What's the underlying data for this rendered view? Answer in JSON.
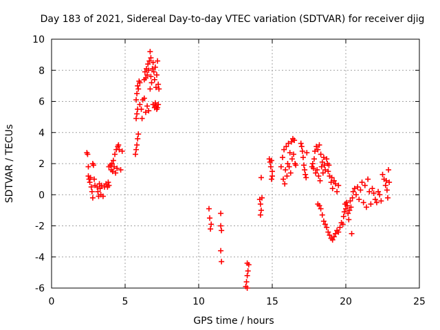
{
  "chart_data": {
    "type": "scatter",
    "title": "Day 183 of 2021, Sidereal Day-to-day VTEC variation (SDTVAR) for receiver djig",
    "xlabel": "GPS time / hours",
    "ylabel": "SDTVAR / TECUs",
    "xlim": [
      0,
      25
    ],
    "ylim": [
      -6,
      10
    ],
    "xticks": [
      "0",
      "5",
      "10",
      "15",
      "20",
      "25"
    ],
    "yticks": [
      "-6",
      "-4",
      "-2",
      "0",
      "2",
      "4",
      "6",
      "8",
      "10"
    ],
    "xtick_values": [
      0,
      5,
      10,
      15,
      20,
      25
    ],
    "ytick_values": [
      -6,
      -4,
      -2,
      0,
      2,
      4,
      6,
      8,
      10
    ],
    "grid": true,
    "marker": "+",
    "color": "#ff0000",
    "series": [
      {
        "points": [
          [
            2.4,
            2.7
          ],
          [
            2.45,
            2.6
          ],
          [
            2.5,
            1.8
          ],
          [
            2.5,
            1.2
          ],
          [
            2.55,
            1.0
          ],
          [
            2.6,
            0.8
          ],
          [
            2.65,
            1.1
          ],
          [
            2.7,
            0.5
          ],
          [
            2.75,
            0.2
          ],
          [
            2.8,
            -0.2
          ],
          [
            2.8,
            2.0
          ],
          [
            2.85,
            1.9
          ],
          [
            2.9,
            1.0
          ],
          [
            2.95,
            0.6
          ],
          [
            3.1,
            0.5
          ],
          [
            3.15,
            0.2
          ],
          [
            3.2,
            -0.1
          ],
          [
            3.25,
            0.7
          ],
          [
            3.3,
            0.4
          ],
          [
            3.35,
            0.0
          ],
          [
            3.4,
            0.6
          ],
          [
            3.5,
            -0.1
          ],
          [
            3.6,
            0.5
          ],
          [
            3.7,
            0.7
          ],
          [
            3.8,
            0.5
          ],
          [
            3.85,
            0.8
          ],
          [
            3.9,
            0.6
          ],
          [
            3.9,
            1.8
          ],
          [
            4.0,
            1.9
          ],
          [
            4.05,
            1.6
          ],
          [
            4.1,
            2.0
          ],
          [
            4.15,
            1.5
          ],
          [
            4.2,
            2.2
          ],
          [
            4.25,
            1.8
          ],
          [
            4.3,
            2.6
          ],
          [
            4.35,
            1.4
          ],
          [
            4.4,
            2.9
          ],
          [
            4.45,
            1.7
          ],
          [
            4.5,
            3.1
          ],
          [
            4.55,
            3.2
          ],
          [
            4.6,
            2.9
          ],
          [
            4.7,
            1.6
          ],
          [
            4.8,
            2.8
          ],
          [
            5.7,
            2.6
          ],
          [
            5.75,
            2.9
          ],
          [
            5.8,
            3.2
          ],
          [
            5.85,
            3.6
          ],
          [
            5.9,
            3.9
          ],
          [
            5.75,
            4.9
          ],
          [
            5.8,
            5.2
          ],
          [
            5.85,
            5.5
          ],
          [
            5.75,
            6.1
          ],
          [
            5.8,
            6.5
          ],
          [
            5.85,
            7.0
          ],
          [
            5.9,
            6.8
          ],
          [
            5.95,
            7.3
          ],
          [
            6.0,
            7.2
          ],
          [
            6.0,
            5.8
          ],
          [
            6.1,
            5.5
          ],
          [
            6.15,
            4.9
          ],
          [
            6.2,
            6.1
          ],
          [
            6.3,
            6.2
          ],
          [
            6.3,
            7.4
          ],
          [
            6.35,
            7.9
          ],
          [
            6.4,
            7.5
          ],
          [
            6.45,
            8.1
          ],
          [
            6.5,
            7.7
          ],
          [
            6.55,
            8.4
          ],
          [
            6.6,
            8.0
          ],
          [
            6.65,
            8.6
          ],
          [
            6.7,
            9.2
          ],
          [
            6.75,
            8.8
          ],
          [
            6.4,
            5.3
          ],
          [
            6.5,
            5.7
          ],
          [
            6.6,
            5.4
          ],
          [
            6.7,
            6.8
          ],
          [
            6.75,
            7.6
          ],
          [
            6.8,
            7.2
          ],
          [
            6.85,
            8.1
          ],
          [
            6.9,
            8.5
          ],
          [
            6.95,
            7.9
          ],
          [
            7.0,
            7.4
          ],
          [
            7.05,
            8.2
          ],
          [
            7.1,
            6.9
          ],
          [
            7.15,
            7.7
          ],
          [
            7.2,
            8.6
          ],
          [
            7.25,
            7.1
          ],
          [
            7.3,
            6.8
          ],
          [
            6.9,
            5.8
          ],
          [
            7.0,
            5.6
          ],
          [
            7.05,
            5.9
          ],
          [
            7.1,
            5.7
          ],
          [
            7.15,
            5.5
          ],
          [
            7.2,
            5.6
          ],
          [
            7.25,
            5.8
          ],
          [
            10.7,
            -0.9
          ],
          [
            10.75,
            -1.5
          ],
          [
            10.8,
            -2.2
          ],
          [
            10.85,
            -1.9
          ],
          [
            11.5,
            -1.2
          ],
          [
            11.5,
            -2.0
          ],
          [
            11.55,
            -2.3
          ],
          [
            11.5,
            -3.6
          ],
          [
            11.55,
            -4.3
          ],
          [
            13.2,
            -5.9
          ],
          [
            13.25,
            -5.6
          ],
          [
            13.3,
            -5.2
          ],
          [
            13.35,
            -4.9
          ],
          [
            13.3,
            -4.4
          ],
          [
            13.4,
            -4.5
          ],
          [
            13.3,
            -6.0
          ],
          [
            14.15,
            -0.3
          ],
          [
            14.2,
            -0.6
          ],
          [
            14.25,
            -1.0
          ],
          [
            14.2,
            -1.3
          ],
          [
            14.25,
            1.1
          ],
          [
            14.3,
            -0.2
          ],
          [
            14.8,
            2.3
          ],
          [
            14.85,
            2.1
          ],
          [
            14.9,
            1.8
          ],
          [
            14.95,
            2.2
          ],
          [
            15.0,
            1.5
          ],
          [
            14.95,
            1.0
          ],
          [
            15.0,
            1.2
          ],
          [
            15.6,
            1.8
          ],
          [
            15.7,
            2.4
          ],
          [
            15.75,
            1.0
          ],
          [
            15.8,
            2.9
          ],
          [
            15.85,
            0.7
          ],
          [
            15.9,
            1.6
          ],
          [
            15.95,
            3.1
          ],
          [
            16.0,
            1.2
          ],
          [
            16.05,
            2.0
          ],
          [
            16.1,
            3.3
          ],
          [
            16.15,
            1.8
          ],
          [
            16.2,
            2.7
          ],
          [
            16.25,
            1.4
          ],
          [
            16.3,
            3.4
          ],
          [
            16.35,
            2.3
          ],
          [
            16.4,
            3.6
          ],
          [
            16.45,
            2.6
          ],
          [
            16.5,
            3.5
          ],
          [
            16.55,
            2.0
          ],
          [
            16.6,
            1.9
          ],
          [
            16.95,
            3.3
          ],
          [
            17.0,
            3.1
          ],
          [
            17.05,
            2.8
          ],
          [
            17.1,
            2.4
          ],
          [
            17.15,
            1.9
          ],
          [
            17.2,
            1.6
          ],
          [
            17.25,
            1.3
          ],
          [
            17.3,
            1.1
          ],
          [
            17.35,
            2.7
          ],
          [
            17.7,
            1.8
          ],
          [
            17.75,
            2.0
          ],
          [
            17.8,
            1.7
          ],
          [
            17.85,
            2.3
          ],
          [
            17.9,
            2.8
          ],
          [
            17.95,
            1.4
          ],
          [
            18.0,
            3.1
          ],
          [
            18.05,
            1.6
          ],
          [
            18.1,
            2.9
          ],
          [
            18.15,
            1.2
          ],
          [
            18.2,
            3.2
          ],
          [
            18.25,
            0.9
          ],
          [
            18.3,
            2.6
          ],
          [
            18.35,
            1.8
          ],
          [
            18.4,
            2.1
          ],
          [
            18.45,
            1.4
          ],
          [
            18.5,
            2.4
          ],
          [
            18.55,
            1.9
          ],
          [
            18.6,
            1.6
          ],
          [
            18.7,
            2.3
          ],
          [
            18.75,
            2.0
          ],
          [
            18.8,
            1.5
          ],
          [
            18.85,
            1.9
          ],
          [
            18.9,
            1.2
          ],
          [
            19.0,
            0.8
          ],
          [
            19.05,
            1.1
          ],
          [
            19.1,
            0.4
          ],
          [
            19.2,
            0.9
          ],
          [
            19.3,
            0.7
          ],
          [
            19.4,
            0.2
          ],
          [
            19.5,
            0.6
          ],
          [
            18.1,
            -0.6
          ],
          [
            18.2,
            -0.7
          ],
          [
            18.3,
            -0.9
          ],
          [
            18.4,
            -1.3
          ],
          [
            18.5,
            -1.7
          ],
          [
            18.6,
            -1.9
          ],
          [
            18.7,
            -2.1
          ],
          [
            18.8,
            -2.4
          ],
          [
            18.9,
            -2.6
          ],
          [
            19.0,
            -2.8
          ],
          [
            19.1,
            -2.9
          ],
          [
            19.2,
            -2.7
          ],
          [
            19.3,
            -2.5
          ],
          [
            19.4,
            -2.3
          ],
          [
            19.5,
            -2.4
          ],
          [
            19.6,
            -2.1
          ],
          [
            19.7,
            -1.8
          ],
          [
            19.8,
            -1.9
          ],
          [
            19.85,
            -1.4
          ],
          [
            19.9,
            -1.1
          ],
          [
            19.95,
            -0.6
          ],
          [
            20.0,
            -0.9
          ],
          [
            20.05,
            -0.5
          ],
          [
            20.1,
            -0.7
          ],
          [
            20.15,
            -1.2
          ],
          [
            20.2,
            -1.6
          ],
          [
            20.25,
            -1.0
          ],
          [
            20.3,
            -0.4
          ],
          [
            20.35,
            -0.8
          ],
          [
            20.4,
            -2.5
          ],
          [
            20.45,
            -0.2
          ],
          [
            20.5,
            0.2
          ],
          [
            20.6,
            0.4
          ],
          [
            20.7,
            0.0
          ],
          [
            20.8,
            0.5
          ],
          [
            20.9,
            -0.3
          ],
          [
            21.0,
            0.3
          ],
          [
            21.1,
            0.8
          ],
          [
            21.2,
            -0.5
          ],
          [
            21.3,
            0.6
          ],
          [
            21.4,
            -0.8
          ],
          [
            21.5,
            1.0
          ],
          [
            21.6,
            0.2
          ],
          [
            21.7,
            -0.6
          ],
          [
            21.8,
            0.4
          ],
          [
            21.9,
            0.1
          ],
          [
            22.0,
            -0.3
          ],
          [
            22.1,
            -0.5
          ],
          [
            22.2,
            0.2
          ],
          [
            22.3,
            0.0
          ],
          [
            22.4,
            -0.4
          ],
          [
            22.5,
            1.3
          ],
          [
            22.6,
            1.0
          ],
          [
            22.7,
            0.6
          ],
          [
            22.75,
            0.9
          ],
          [
            22.8,
            0.3
          ],
          [
            22.85,
            -0.2
          ],
          [
            22.9,
            1.6
          ],
          [
            22.95,
            0.8
          ]
        ]
      }
    ]
  }
}
